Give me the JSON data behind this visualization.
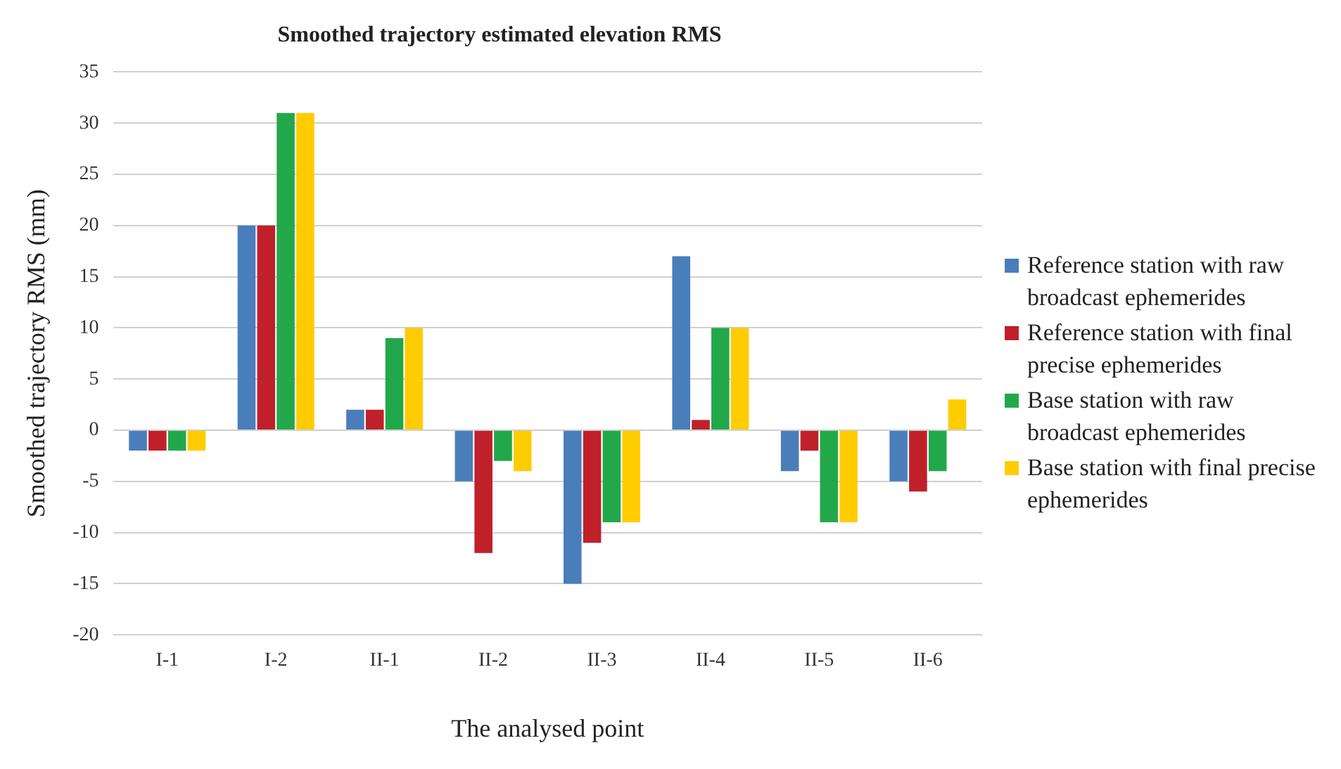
{
  "chart_data": {
    "type": "bar",
    "title": "Smoothed trajectory estimated elevation RMS",
    "xlabel": "The analysed point",
    "ylabel": "Smoothed trajectory RMS (mm)",
    "categories": [
      "I-1",
      "I-2",
      "II-1",
      "II-2",
      "II-3",
      "II-4",
      "II-5",
      "II-6"
    ],
    "series": [
      {
        "name": "Reference station with raw broadcast ephemerides",
        "color": "#4a7ebb",
        "values": [
          -2,
          20,
          2,
          -5,
          -15,
          17,
          -4,
          -5
        ]
      },
      {
        "name": "Reference station with final precise ephemerides",
        "color": "#c0202a",
        "values": [
          -2,
          20,
          2,
          -12,
          -11,
          1,
          -2,
          -6
        ]
      },
      {
        "name": "Base station with raw broadcast ephemerides",
        "color": "#22a84a",
        "values": [
          -2,
          31,
          9,
          -3,
          -9,
          10,
          -9,
          -4
        ]
      },
      {
        "name": "Base station with final precise ephemerides",
        "color": "#ffcc00",
        "values": [
          -2,
          31,
          10,
          -4,
          -9,
          10,
          -9,
          3
        ]
      }
    ],
    "ylim": [
      -20,
      35
    ],
    "yticks": [
      -20,
      -15,
      -10,
      -5,
      0,
      5,
      10,
      15,
      20,
      25,
      30,
      35
    ],
    "grid": "y",
    "legend": "right"
  }
}
